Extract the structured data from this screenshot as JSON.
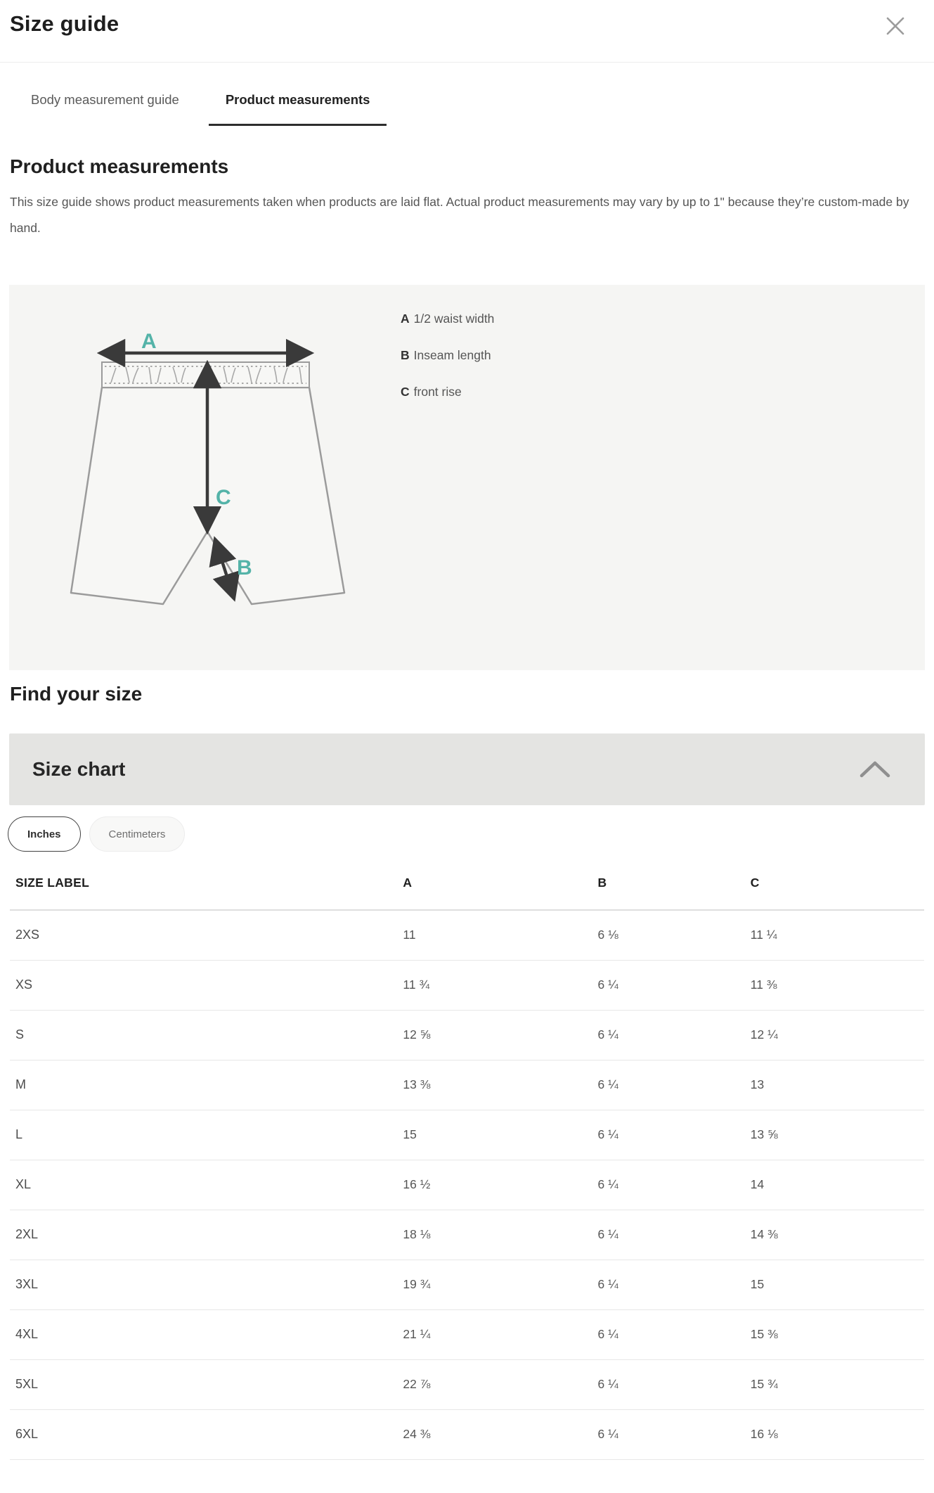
{
  "header": {
    "title": "Size guide"
  },
  "icons": {
    "close": "close-icon",
    "collapse": "chevron-up-icon"
  },
  "tabs": [
    {
      "label": "Body measurement guide",
      "active": false
    },
    {
      "label": "Product measurements",
      "active": true
    }
  ],
  "section": {
    "heading": "Product measurements",
    "description": "This size guide shows product measurements taken when products are laid flat. Actual product measurements may vary by up to 1\" because they’re custom-made by hand."
  },
  "diagram": {
    "accent_color": "#54b3a8",
    "labels": {
      "a": "A",
      "b": "B",
      "c": "C"
    },
    "legend": [
      {
        "key": "A",
        "label": "1/2 waist width"
      },
      {
        "key": "B",
        "label": "Inseam length"
      },
      {
        "key": "C",
        "label": "front rise"
      }
    ]
  },
  "find_your_size": {
    "heading": "Find your size"
  },
  "size_chart": {
    "title": "Size chart",
    "units": [
      {
        "label": "Inches",
        "selected": true
      },
      {
        "label": "Centimeters",
        "selected": false
      }
    ]
  },
  "table": {
    "columns": [
      "SIZE LABEL",
      "A",
      "B",
      "C"
    ],
    "rows": [
      [
        "2XS",
        "11",
        "6 ⅛",
        "11 ¼"
      ],
      [
        "XS",
        "11 ¾",
        "6 ¼",
        "11 ⅜"
      ],
      [
        "S",
        "12 ⅝",
        "6 ¼",
        "12 ¼"
      ],
      [
        "M",
        "13 ⅜",
        "6 ¼",
        "13"
      ],
      [
        "L",
        "15",
        "6 ¼",
        "13 ⅝"
      ],
      [
        "XL",
        "16 ½",
        "6 ¼",
        "14"
      ],
      [
        "2XL",
        "18 ⅛",
        "6 ¼",
        "14 ⅜"
      ],
      [
        "3XL",
        "19 ¾",
        "6 ¼",
        "15"
      ],
      [
        "4XL",
        "21 ¼",
        "6 ¼",
        "15 ⅜"
      ],
      [
        "5XL",
        "22 ⅞",
        "6 ¼",
        "15 ¾"
      ],
      [
        "6XL",
        "24 ⅜",
        "6 ¼",
        "16 ⅛"
      ]
    ]
  }
}
